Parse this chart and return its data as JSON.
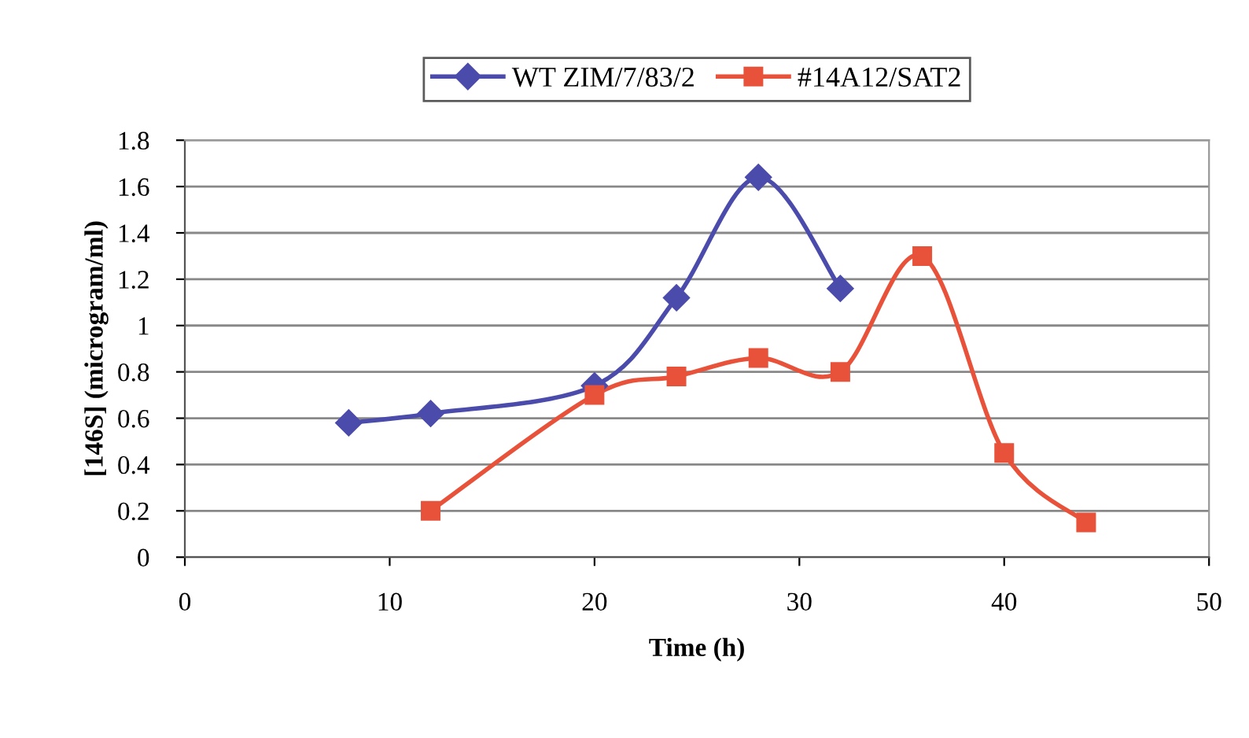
{
  "chart_data": {
    "type": "line",
    "xlabel": "Time (h)",
    "ylabel": "[146S] (microgram/ml)",
    "xlim": [
      0,
      50
    ],
    "xticks": [
      0,
      10,
      20,
      30,
      40,
      50
    ],
    "ylim": [
      0,
      1.8
    ],
    "yticks": [
      0,
      0.2,
      0.4,
      0.6,
      0.8,
      1,
      1.2,
      1.4,
      1.6,
      1.8
    ],
    "grid": "y",
    "legend": "top",
    "line_style": "solid",
    "series": [
      {
        "name": "WT ZIM/7/83/2",
        "color": "#4b4bab",
        "marker": "diamond",
        "x": [
          8,
          12,
          20,
          24,
          28,
          32
        ],
        "values": [
          0.58,
          0.62,
          0.74,
          1.12,
          1.64,
          1.16
        ]
      },
      {
        "name": "#14A12/SAT2",
        "color": "#e8523a",
        "marker": "square",
        "x": [
          12,
          20,
          24,
          28,
          32,
          36,
          40,
          44
        ],
        "values": [
          0.2,
          0.7,
          0.78,
          0.86,
          0.8,
          1.3,
          0.45,
          0.15
        ]
      }
    ]
  }
}
